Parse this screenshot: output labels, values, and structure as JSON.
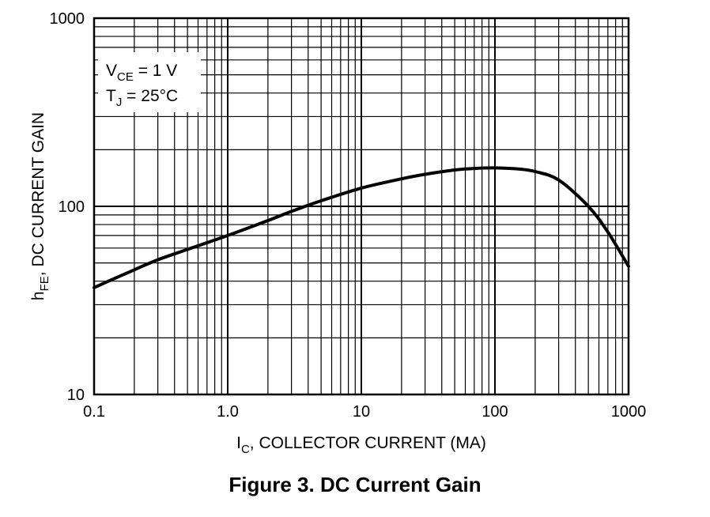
{
  "chart_data": {
    "type": "line",
    "xscale": "log",
    "yscale": "log",
    "xlim": [
      0.1,
      1000
    ],
    "ylim": [
      10,
      1000
    ],
    "grid": true,
    "x_ticks": [
      "0.1",
      "1.0",
      "10",
      "100",
      "1000"
    ],
    "y_ticks": [
      "10",
      "100",
      "1000"
    ],
    "xlabel": {
      "main": "I",
      "sub": "C",
      "rest": ", COLLECTOR CURRENT (MA)"
    },
    "ylabel": {
      "main": "h",
      "sub": "FE",
      "rest": ", DC CURRENT GAIN"
    },
    "annotation": [
      {
        "main": "V",
        "sub": "CE",
        "rest": " = 1 V"
      },
      {
        "main": "T",
        "sub": "J",
        "rest": " = 25°C"
      }
    ],
    "series": [
      {
        "color": "#000000",
        "x": [
          0.1,
          0.2,
          0.3,
          0.5,
          1.0,
          2.0,
          3.0,
          5.0,
          10,
          20,
          30,
          50,
          70,
          100,
          150,
          200,
          300,
          500,
          700,
          1000
        ],
        "y": [
          37,
          46,
          52,
          59,
          70,
          84,
          94,
          107,
          125,
          140,
          148,
          156,
          159,
          160,
          158,
          153,
          138,
          100,
          73,
          48
        ]
      }
    ]
  },
  "caption": "Figure 3. DC Current Gain"
}
